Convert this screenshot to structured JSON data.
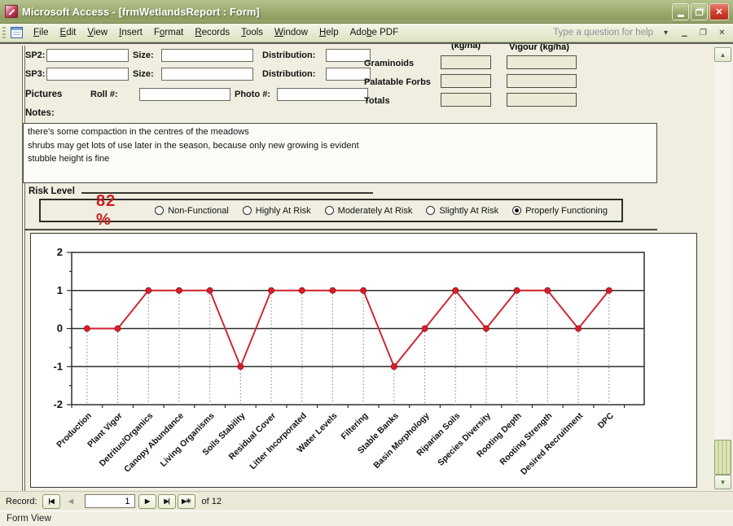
{
  "window": {
    "title": "Microsoft Access - [frmWetlandsReport : Form]"
  },
  "menu": {
    "items": [
      {
        "label": "File",
        "accel": 0
      },
      {
        "label": "Edit",
        "accel": 0
      },
      {
        "label": "View",
        "accel": 0
      },
      {
        "label": "Insert",
        "accel": 0
      },
      {
        "label": "Format",
        "accel": 1
      },
      {
        "label": "Records",
        "accel": 0
      },
      {
        "label": "Tools",
        "accel": 0
      },
      {
        "label": "Window",
        "accel": 0
      },
      {
        "label": "Help",
        "accel": 0
      },
      {
        "label": "Adobe PDF",
        "accel": 3
      }
    ],
    "help_placeholder": "Type a question for help"
  },
  "icons": {
    "dropdown": "▾",
    "minimize": "—",
    "restore": "❐",
    "close": "✕",
    "scroll_up": "▲",
    "scroll_down": "▼"
  },
  "form": {
    "sp_rows": [
      {
        "label": "SP2:",
        "size_label": "Size:",
        "dist_label": "Distribution:",
        "value": "",
        "size_value": "",
        "dist_value": ""
      },
      {
        "label": "SP3:",
        "size_label": "Size:",
        "dist_label": "Distribution:",
        "value": "",
        "size_value": "",
        "dist_value": ""
      }
    ],
    "pictures": {
      "label": "Pictures",
      "roll_label": "Roll #:",
      "roll_value": "",
      "photo_label": "Photo #:",
      "photo_value": ""
    },
    "forage": {
      "col1_header": "(kg/ha)",
      "col2_header": "Vigour (kg/ha)",
      "rows": [
        "Graminoids",
        "Palatable Forbs",
        "Totals"
      ]
    },
    "notes": {
      "label": "Notes:",
      "text": "there's some compaction in the centres of the meadows\nshrubs may get lots of use later in the season, because only new growing is evident\nstubble height is fine"
    },
    "risk": {
      "label": "Risk Level",
      "percent": "82 %",
      "percent_color": "#cf1e1e",
      "options": [
        {
          "label": "Non-Functional",
          "selected": false
        },
        {
          "label": "Highly At Risk",
          "selected": false
        },
        {
          "label": "Moderately At Risk",
          "selected": false
        },
        {
          "label": "Slightly At Risk",
          "selected": false
        },
        {
          "label": "Properly Functioning",
          "selected": true
        }
      ]
    }
  },
  "chart_data": {
    "type": "line",
    "title": "",
    "xlabel": "",
    "ylabel": "",
    "categories": [
      "Production",
      "Plant Vigor",
      "Detritus/Organics",
      "Canopy Abundance",
      "Living Organisms",
      "Soils Stability",
      "Residual Cover",
      "Litter Incorporated",
      "Water Levels",
      "Filtering",
      "Stable Banks",
      "Basin Morphology",
      "Riparian Soils",
      "Species Diversity",
      "Rooting Depth",
      "Rooting Strength",
      "Desired Recruitment",
      "DPC"
    ],
    "values": [
      0,
      0,
      1,
      1,
      1,
      -1,
      1,
      1,
      1,
      1,
      -1,
      0,
      1,
      0,
      1,
      1,
      0,
      1
    ],
    "ylim": [
      -2,
      2
    ],
    "yticks": [
      2,
      1,
      0,
      -1,
      -2
    ],
    "grid": "solid horizontal lines at -1, 0, 1; dotted vertical drop lines under each point",
    "legend": "none",
    "line_color": "#d0202e",
    "marker_color": "#e21a28"
  },
  "record_nav": {
    "label": "Record:",
    "buttons_left": [
      {
        "glyph": "◀",
        "name": "first-record-button",
        "bar": "left",
        "disabled": false
      },
      {
        "glyph": "◀",
        "name": "previous-record-button",
        "bar": "none",
        "disabled": true
      }
    ],
    "current": "1",
    "buttons_right": [
      {
        "glyph": "▶",
        "name": "next-record-button",
        "bar": "none",
        "disabled": false
      },
      {
        "glyph": "▶",
        "name": "last-record-button",
        "bar": "right",
        "disabled": false
      },
      {
        "glyph": "▶✳",
        "name": "new-record-button",
        "bar": "none",
        "disabled": false
      }
    ],
    "of_label": "of 12"
  },
  "status_bar": "Form View"
}
